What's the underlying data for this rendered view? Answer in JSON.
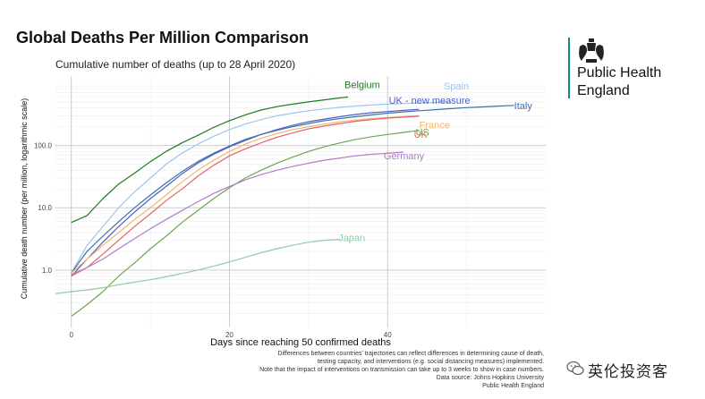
{
  "page": {
    "title": "Global Deaths Per Million Comparison"
  },
  "brand": {
    "name_line1": "Public Health",
    "name_line2": "England",
    "line_color": "#0b8b8c",
    "crest_icon": "royal-crest-icon"
  },
  "footnotes": [
    "Differences between countries' trajectories can reflect differences in determining cause of death,",
    "testing capacity, and interventions (e.g. social distancing measures) implemented.",
    "Note that the impact of interventions on transmission can take up to 3 weeks to show in case numbers.",
    "Data source: Johns Hopkins University",
    "Public Health England"
  ],
  "watermark": {
    "text": "英伦投资客",
    "icon": "wechat-icon"
  },
  "chart_data": {
    "type": "line",
    "title": "Cumulative number of deaths (up to 28 April 2020)",
    "xlabel": "Days since reaching 50 confirmed deaths",
    "ylabel": "Cumulative death number (per million, logarithmic scale)",
    "y_scale": "log",
    "xlim": [
      -2,
      60
    ],
    "ylim": [
      0.12,
      1300
    ],
    "x_ticks": [
      0,
      20,
      40
    ],
    "y_ticks": [
      1,
      10,
      100
    ],
    "y_tick_labels": [
      "1.0",
      "10.0",
      "100.0"
    ],
    "grid": true,
    "legend": "direct labels at line ends",
    "series": [
      {
        "name": "Belgium",
        "color": "#1e7a1e",
        "x": [
          0,
          2,
          4,
          6,
          8,
          10,
          12,
          14,
          16,
          18,
          20,
          22,
          24,
          26,
          28,
          30,
          32,
          34,
          35
        ],
        "y": [
          5.8,
          7.5,
          14,
          24,
          36,
          55,
          80,
          110,
          145,
          195,
          250,
          310,
          370,
          420,
          460,
          500,
          540,
          580,
          600
        ]
      },
      {
        "name": "UK - new measure",
        "color": "#4a5fc7",
        "x": [
          0,
          2,
          4,
          6,
          8,
          10,
          12,
          14,
          16,
          18,
          20,
          22,
          24,
          26,
          28,
          30,
          32,
          34,
          36,
          38,
          40,
          42,
          44
        ],
        "y": [
          0.8,
          1.5,
          2.8,
          5,
          8.5,
          14,
          22,
          35,
          52,
          72,
          95,
          120,
          150,
          180,
          210,
          240,
          265,
          290,
          315,
          335,
          350,
          365,
          380
        ]
      },
      {
        "name": "Spain",
        "color": "#9fc5e8",
        "x": [
          0,
          2,
          4,
          6,
          8,
          10,
          12,
          14,
          16,
          18,
          20,
          22,
          24,
          26,
          28,
          30,
          32,
          34,
          36,
          38,
          40,
          42,
          44,
          46,
          48
        ],
        "y": [
          0.9,
          2.5,
          5,
          10,
          18,
          30,
          50,
          75,
          105,
          140,
          180,
          220,
          260,
          300,
          330,
          360,
          385,
          410,
          430,
          445,
          460,
          470,
          480,
          490,
          500
        ]
      },
      {
        "name": "Italy",
        "color": "#3e6fa8",
        "x": [
          0,
          2,
          4,
          6,
          8,
          10,
          12,
          14,
          16,
          18,
          20,
          22,
          24,
          26,
          28,
          30,
          32,
          34,
          36,
          38,
          40,
          42,
          44,
          46,
          48,
          50,
          52,
          54,
          56
        ],
        "y": [
          0.9,
          2,
          3.5,
          6,
          10,
          16,
          25,
          38,
          55,
          75,
          98,
          125,
          150,
          175,
          200,
          225,
          250,
          270,
          290,
          310,
          330,
          345,
          360,
          375,
          390,
          405,
          415,
          428,
          440
        ]
      },
      {
        "name": "France",
        "color": "#f5b36b",
        "x": [
          0,
          2,
          4,
          6,
          8,
          10,
          12,
          14,
          16,
          18,
          20,
          22,
          24,
          26,
          28,
          30,
          32,
          34,
          36,
          38,
          40,
          42,
          44
        ],
        "y": [
          0.9,
          1.5,
          2.5,
          4,
          6.5,
          10,
          16,
          26,
          40,
          58,
          80,
          105,
          130,
          155,
          180,
          200,
          220,
          240,
          255,
          270,
          280,
          290,
          300
        ]
      },
      {
        "name": "UK",
        "color": "#e06666",
        "x": [
          0,
          2,
          4,
          6,
          8,
          10,
          12,
          14,
          16,
          18,
          20,
          22,
          24,
          26,
          28,
          30,
          32,
          34,
          36,
          38,
          40,
          42,
          44
        ],
        "y": [
          0.8,
          1.1,
          1.8,
          3,
          5,
          8,
          13,
          20,
          32,
          48,
          68,
          88,
          110,
          135,
          160,
          185,
          205,
          225,
          245,
          260,
          275,
          285,
          295
        ]
      },
      {
        "name": "US",
        "color": "#6aa84f",
        "x": [
          0,
          2,
          4,
          6,
          8,
          10,
          12,
          14,
          16,
          18,
          20,
          22,
          24,
          26,
          28,
          30,
          32,
          34,
          36,
          38,
          40,
          42,
          44
        ],
        "y": [
          0.18,
          0.28,
          0.45,
          0.8,
          1.3,
          2.2,
          3.5,
          5.8,
          9,
          14,
          21,
          30,
          40,
          52,
          65,
          80,
          95,
          110,
          125,
          138,
          150,
          162,
          175
        ]
      },
      {
        "name": "Germany",
        "color": "#b07cc6",
        "x": [
          0,
          2,
          4,
          6,
          8,
          10,
          12,
          14,
          16,
          18,
          20,
          22,
          24,
          26,
          28,
          30,
          32,
          34,
          36,
          38,
          40,
          42
        ],
        "y": [
          0.85,
          1.1,
          1.5,
          2.2,
          3.2,
          4.6,
          6.5,
          9,
          12.5,
          17,
          22,
          28,
          34,
          40,
          46,
          52,
          58,
          63,
          68,
          72,
          75,
          78
        ]
      },
      {
        "name": "Japan",
        "color": "#93c9a9",
        "x": [
          -2,
          0,
          2,
          4,
          6,
          8,
          10,
          12,
          14,
          16,
          18,
          20,
          22,
          24,
          26,
          28,
          30,
          32,
          34
        ],
        "y": [
          0.42,
          0.45,
          0.48,
          0.52,
          0.58,
          0.64,
          0.7,
          0.78,
          0.88,
          1.0,
          1.15,
          1.35,
          1.6,
          1.9,
          2.2,
          2.5,
          2.8,
          3.0,
          3.1
        ]
      }
    ]
  }
}
